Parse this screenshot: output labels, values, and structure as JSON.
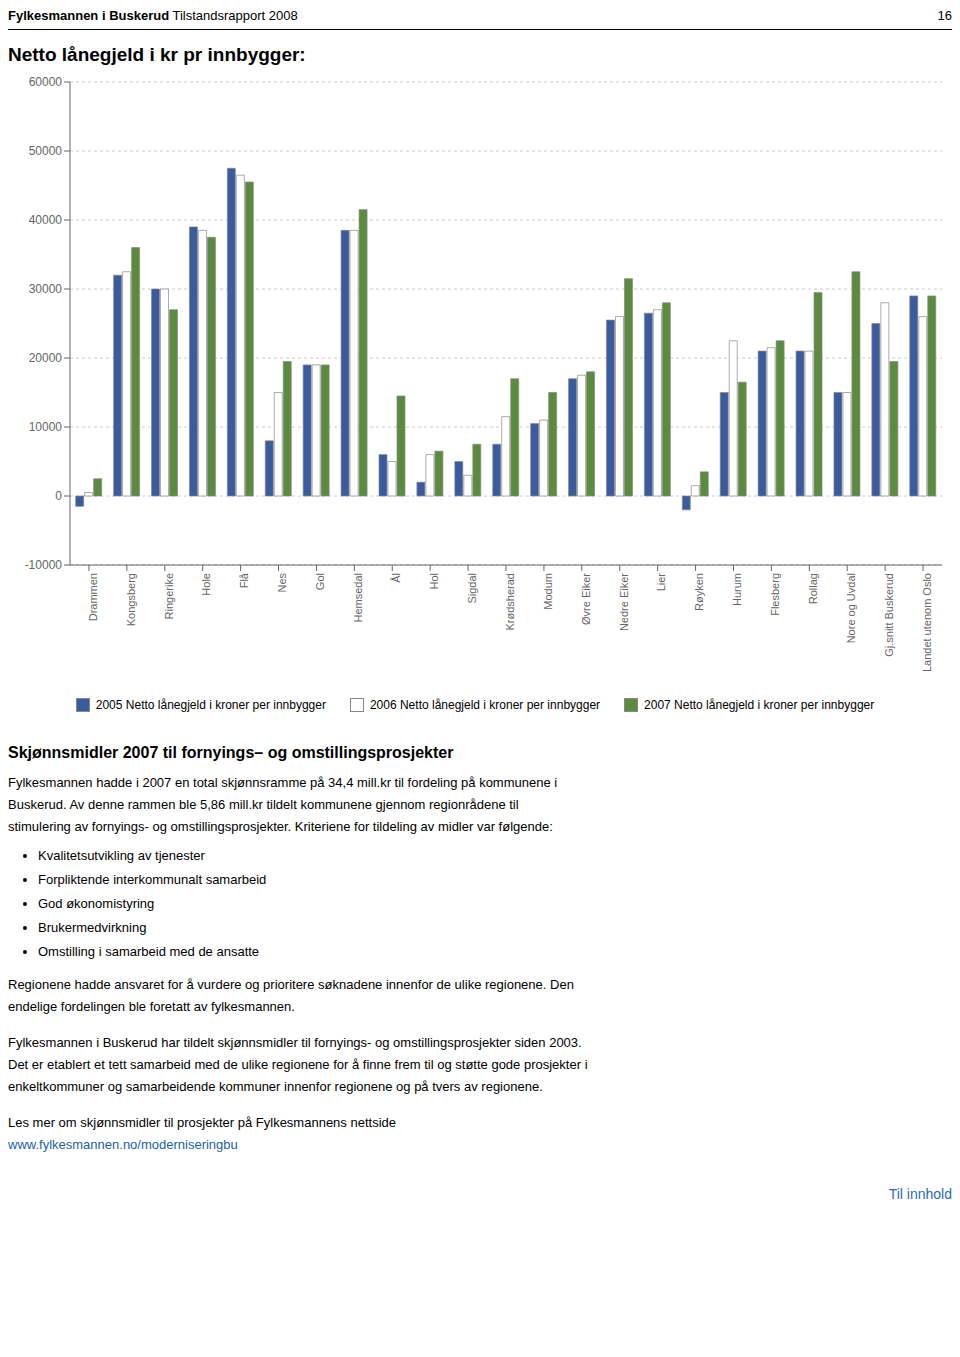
{
  "header_bold": "Fylkesmannen i Buskerud",
  "header_normal": " Tilstandsrapport 2008",
  "page_number": "16",
  "chart_data": {
    "type": "bar",
    "title": "Netto lånegjeld i kr pr innbygger:",
    "categories": [
      "Drammen",
      "Kongsberg",
      "Ringerike",
      "Hole",
      "Flå",
      "Nes",
      "Gol",
      "Hemsedal",
      "Ål",
      "Hol",
      "Sigdal",
      "Krødsherad",
      "Modum",
      "Øvre Eiker",
      "Nedre Eiker",
      "Lier",
      "Røyken",
      "Hurum",
      "Flesberg",
      "Rollag",
      "Nore og Uvdal",
      "Gj.snitt Buskerud",
      "Landet utenom Oslo"
    ],
    "series": [
      {
        "name": "2005 Netto lånegjeld i kroner per innbygger",
        "color": "#3A5BA0",
        "values": [
          -1500,
          32000,
          30000,
          39000,
          47500,
          8000,
          19000,
          38500,
          6000,
          2000,
          5000,
          7500,
          10500,
          17000,
          25500,
          26500,
          -2000,
          15000,
          21000,
          21000,
          15000,
          25000,
          29000
        ]
      },
      {
        "name": "2006 Netto lånegjeld i kroner per innbygger",
        "color": "#FFFFFF",
        "values": [
          500,
          32500,
          30000,
          38500,
          46500,
          15000,
          19000,
          38500,
          5000,
          6000,
          3000,
          11500,
          11000,
          17500,
          26000,
          27000,
          1500,
          22500,
          21500,
          21000,
          15000,
          28000,
          26000
        ]
      },
      {
        "name": "2007 Netto lånegjeld i kroner per innbygger",
        "color": "#5B8C3E",
        "values": [
          2500,
          36000,
          27000,
          37500,
          45500,
          19500,
          19000,
          41500,
          14500,
          6500,
          7500,
          17000,
          15000,
          18000,
          31500,
          28000,
          3500,
          16500,
          22500,
          29500,
          32500,
          19500,
          29000
        ]
      }
    ],
    "ylim": [
      -10000,
      60000
    ],
    "yticks": [
      -10000,
      0,
      10000,
      20000,
      30000,
      40000,
      50000,
      60000
    ],
    "grid": true,
    "legend": "bottom"
  },
  "section_title": "Skjønnsmidler 2007 til fornyings– og omstillingsprosjekter",
  "body_text1": [
    "Fylkesmannen hadde i 2007 en total skjønnsramme på 34,4 mill.kr til fordeling på kommunene i",
    "Buskerud.  Av denne rammen ble 5,86 mill.kr tildelt kommunene gjennom regionrådene til",
    "stimulering av fornyings- og omstillingsprosjekter.  Kriteriene for tildeling av midler var følgende:"
  ],
  "bullets": [
    "Kvalitetsutvikling av tjenester",
    "Forpliktende interkommunalt samarbeid",
    "God økonomistyring",
    "Brukermedvirkning",
    "Omstilling i samarbeid med de ansatte"
  ],
  "body_text2": [
    "Regionene hadde ansvaret for å vurdere og prioritere søknadene innenfor de ulike regionene.  Den",
    "endelige fordelingen ble foretatt av fylkesmannen."
  ],
  "body_text3": [
    "Fylkesmannen i Buskerud har tildelt skjønnsmidler til fornyings- og omstillingsprosjekter siden 2003.",
    "Det er etablert et tett samarbeid med de ulike regionene for å finne frem til og støtte gode prosjekter i",
    "enkeltkommuner og samarbeidende kommuner innenfor regionene og på tvers av regionene."
  ],
  "body_text4": [
    "Les mer om skjønnsmidler til prosjekter på Fylkesmannens nettside"
  ],
  "link_text": "www.fylkesmannen.no/moderniseringbu",
  "footer": "Til innhold"
}
